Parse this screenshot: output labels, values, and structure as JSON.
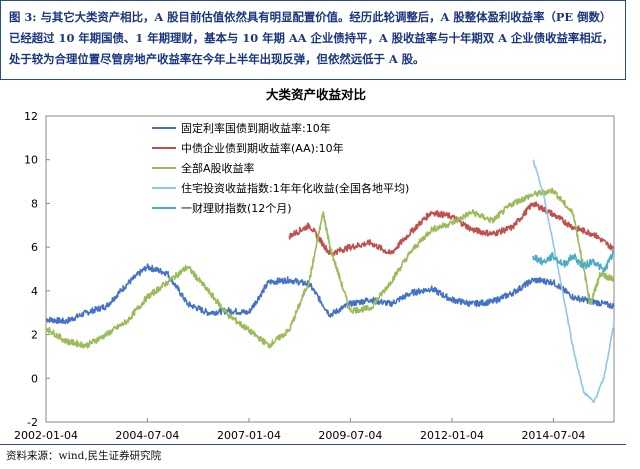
{
  "caption": "图 3: 与其它大类资产相比，A 股目前估值依然具有明显配置价值。经历此轮调整后，A 股整体盈利收益率（PE 倒数）已经超过 10 年期国债、1 年期理财，基本与 10 年期 AA 企业债持平，A 股收益率与十年期双 A 企业债收益率相近，处于较为合理位置尽管房地产收益率在今年上半年出现反弹，但依然远低于 A 股。",
  "source": "资料来源：wind,民生证券研究院",
  "chart_data": {
    "type": "line",
    "title": "大类资产收益对比",
    "xlabel": "",
    "ylabel": "",
    "xlim": [
      "2002-01-04",
      "2015-12-31"
    ],
    "ylim": [
      -2,
      12
    ],
    "yticks": [
      -2,
      0,
      2,
      4,
      6,
      8,
      10,
      12
    ],
    "xticks": [
      "2002-01-04",
      "2004-07-04",
      "2007-01-04",
      "2009-07-04",
      "2012-01-04",
      "2014-07-04"
    ],
    "legend_position": "top-left",
    "grid": false,
    "series": [
      {
        "name": "固定利率国债到期收益率:10年",
        "color": "#4472c4",
        "x": [
          "2002-01-04",
          "2002-07-01",
          "2003-01-01",
          "2003-07-01",
          "2004-01-01",
          "2004-07-01",
          "2005-01-01",
          "2005-07-01",
          "2006-01-01",
          "2006-07-01",
          "2007-01-01",
          "2007-07-01",
          "2008-01-01",
          "2008-07-01",
          "2009-01-01",
          "2009-07-01",
          "2010-01-01",
          "2010-07-01",
          "2011-01-01",
          "2011-07-01",
          "2012-01-01",
          "2012-07-01",
          "2013-01-01",
          "2013-07-01",
          "2014-01-01",
          "2014-07-01",
          "2015-01-01",
          "2015-07-01",
          "2015-12-31"
        ],
        "y": [
          2.7,
          2.6,
          3.0,
          3.3,
          4.3,
          5.1,
          4.8,
          3.4,
          3.0,
          3.1,
          3.0,
          4.4,
          4.5,
          4.3,
          2.9,
          3.4,
          3.6,
          3.4,
          3.9,
          4.1,
          3.6,
          3.4,
          3.5,
          3.9,
          4.5,
          4.4,
          3.7,
          3.5,
          3.3
        ]
      },
      {
        "name": "中债企业债到期收益率(AA):10年",
        "color": "#c0504d",
        "x": [
          "2008-01-01",
          "2008-07-01",
          "2009-01-01",
          "2009-07-01",
          "2010-01-01",
          "2010-07-01",
          "2011-01-01",
          "2011-07-01",
          "2012-01-01",
          "2012-07-01",
          "2013-01-01",
          "2013-07-01",
          "2014-01-01",
          "2014-07-01",
          "2015-01-01",
          "2015-07-01",
          "2015-12-31"
        ],
        "y": [
          6.5,
          7.0,
          5.7,
          6.0,
          6.2,
          5.7,
          6.7,
          7.6,
          7.4,
          6.8,
          6.6,
          6.9,
          8.0,
          7.5,
          6.9,
          6.6,
          5.9
        ]
      },
      {
        "name": "全部A股收益率",
        "color": "#9bbb59",
        "x": [
          "2002-01-04",
          "2002-07-01",
          "2003-01-01",
          "2003-07-01",
          "2004-01-01",
          "2004-07-01",
          "2005-01-01",
          "2005-07-01",
          "2006-01-01",
          "2006-07-01",
          "2007-01-01",
          "2007-07-01",
          "2008-01-01",
          "2008-07-01",
          "2008-11-01",
          "2009-01-01",
          "2009-07-01",
          "2010-01-01",
          "2010-07-01",
          "2011-01-01",
          "2011-07-01",
          "2012-01-01",
          "2012-07-01",
          "2013-01-01",
          "2013-07-01",
          "2014-01-01",
          "2014-07-01",
          "2015-01-01",
          "2015-06-01",
          "2015-09-01",
          "2015-12-31"
        ],
        "y": [
          2.3,
          1.7,
          1.5,
          2.0,
          2.6,
          3.7,
          4.4,
          5.1,
          4.0,
          2.9,
          2.2,
          1.5,
          2.2,
          4.5,
          7.6,
          6.0,
          3.1,
          3.2,
          4.4,
          5.8,
          6.8,
          7.1,
          7.6,
          7.2,
          8.0,
          8.4,
          8.6,
          7.5,
          3.4,
          4.8,
          4.5
        ]
      },
      {
        "name": "住宅投资收益指数:1年年化收益(全国各地平均)",
        "color": "#8ec7e6",
        "x": [
          "2014-01-01",
          "2014-04-01",
          "2014-07-01",
          "2014-10-01",
          "2015-01-01",
          "2015-04-01",
          "2015-07-01",
          "2015-10-01",
          "2015-12-31"
        ],
        "y": [
          10.0,
          8.5,
          6.2,
          3.8,
          1.3,
          -0.6,
          -1.1,
          0.0,
          2.5
        ]
      },
      {
        "name": "一财理财指数(12个月)",
        "color": "#4bacc6",
        "x": [
          "2014-01-01",
          "2014-04-01",
          "2014-07-01",
          "2014-10-01",
          "2015-01-01",
          "2015-04-01",
          "2015-07-01",
          "2015-10-01",
          "2015-12-31"
        ],
        "y": [
          5.6,
          5.3,
          5.6,
          5.2,
          5.6,
          5.1,
          5.4,
          4.9,
          5.8
        ]
      }
    ]
  }
}
